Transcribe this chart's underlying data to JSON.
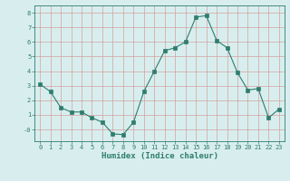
{
  "x": [
    0,
    1,
    2,
    3,
    4,
    5,
    6,
    7,
    8,
    9,
    10,
    11,
    12,
    13,
    14,
    15,
    16,
    17,
    18,
    19,
    20,
    21,
    22,
    23
  ],
  "y": [
    3.1,
    2.6,
    1.5,
    1.2,
    1.2,
    0.8,
    0.5,
    -0.3,
    -0.35,
    0.5,
    2.6,
    4.0,
    5.4,
    5.6,
    6.0,
    7.7,
    7.8,
    6.1,
    5.6,
    3.9,
    2.7,
    2.8,
    0.8,
    1.4
  ],
  "line_color": "#2e7d6e",
  "marker": "s",
  "marker_size": 2.2,
  "bg_color": "#d8eeee",
  "grid_color": "#c0dada",
  "xlabel": "Humidex (Indice chaleur)",
  "ylim": [
    -0.8,
    8.5
  ],
  "xlim": [
    -0.5,
    23.5
  ],
  "yticks": [
    0,
    1,
    2,
    3,
    4,
    5,
    6,
    7,
    8
  ],
  "ytick_labels": [
    "-0",
    "1",
    "2",
    "3",
    "4",
    "5",
    "6",
    "7",
    "8"
  ],
  "xticks": [
    0,
    1,
    2,
    3,
    4,
    5,
    6,
    7,
    8,
    9,
    10,
    11,
    12,
    13,
    14,
    15,
    16,
    17,
    18,
    19,
    20,
    21,
    22,
    23
  ],
  "tick_color": "#2e7d6e",
  "label_color": "#2e7d6e",
  "tick_fontsize": 5.0,
  "xlabel_fontsize": 6.5
}
